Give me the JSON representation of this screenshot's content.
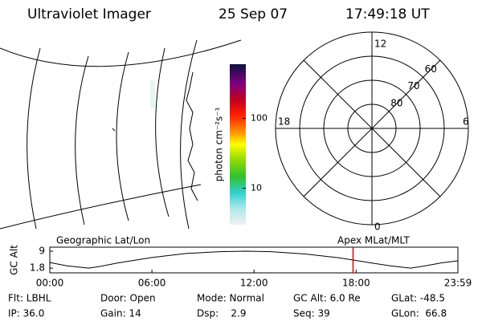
{
  "header": {
    "title": "Ultraviolet Imager",
    "date": "25 Sep 07",
    "time": "17:49:18 UT"
  },
  "map": {
    "label": "Geographic Lat/Lon"
  },
  "colorbar": {
    "label": "photon cm⁻²s⁻¹",
    "scale": "log",
    "clim": [
      3,
      600
    ],
    "ticks": [
      10,
      100
    ]
  },
  "polar": {
    "label": "Apex MLat/MLT",
    "rlim": [
      90,
      50
    ],
    "lat_ticks": [
      80,
      70,
      60
    ],
    "mlt_labels": {
      "top": "12",
      "left": "18",
      "right": "6",
      "bottom": "0"
    }
  },
  "altitude": {
    "ylabel": "GC Alt",
    "ylim": [
      -0.2,
      10.7
    ],
    "yticks": [
      9.0,
      1.8
    ],
    "xlim": [
      0,
      23.98
    ],
    "xticks": [
      {
        "value": 0,
        "label": "00:00"
      },
      {
        "value": 6,
        "label": "06:00"
      },
      {
        "value": 12,
        "label": "12:00"
      },
      {
        "value": 18,
        "label": "18:00"
      },
      {
        "value": 23.98,
        "label": "23:59"
      }
    ],
    "x": [
      0,
      1,
      2.3,
      3,
      4,
      6,
      8,
      10,
      11.5,
      13,
      15,
      17,
      19,
      20,
      21.2,
      22,
      23,
      23.98
    ],
    "values": [
      4.2,
      2.8,
      1.8,
      2.6,
      4.0,
      6.3,
      8.0,
      8.8,
      9.0,
      8.8,
      7.8,
      6.2,
      3.9,
      2.8,
      1.8,
      2.7,
      4.0,
      4.9
    ],
    "marker_x": 17.82,
    "marker_color": "#e00000",
    "color": "#000000"
  },
  "info": [
    [
      "Flt: LBHL",
      "Door: Open",
      "Mode: Normal",
      "GC Alt: 6.0 Re",
      "GLat: -48.5"
    ],
    [
      "IP: 36.0",
      "Gain: 14",
      "Dsp:    2.9",
      "Seq: 39",
      "GLon:  66.8"
    ]
  ]
}
